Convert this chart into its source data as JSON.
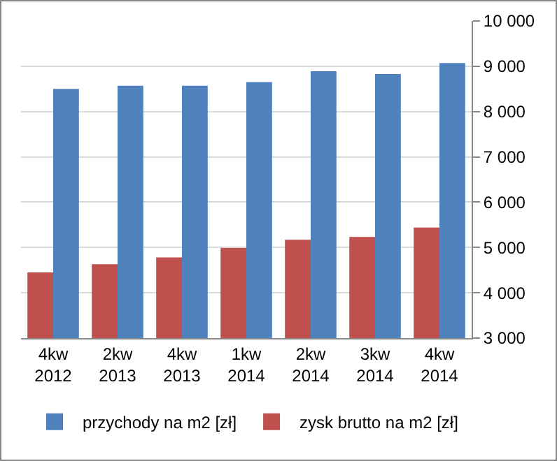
{
  "chart_data": {
    "type": "bar",
    "categories": [
      "4kw\n2012",
      "2kw\n2013",
      "4kw\n2013",
      "1kw\n2014",
      "2kw\n2014",
      "3kw\n2014",
      "4kw\n2014"
    ],
    "series": [
      {
        "name": "zysk brutto na m2 [zł]",
        "color": "#c0504d",
        "values": [
          4450,
          4630,
          4780,
          4990,
          5170,
          5230,
          5440
        ]
      },
      {
        "name": "przychody na m2 [zł]",
        "color": "#4f81bd",
        "values": [
          8500,
          8570,
          8570,
          8650,
          8890,
          8830,
          9070
        ]
      }
    ],
    "ylim": [
      3000,
      10000
    ],
    "yticks": [
      {
        "value": 3000,
        "label": "3 000"
      },
      {
        "value": 4000,
        "label": "4 000"
      },
      {
        "value": 5000,
        "label": "5 000"
      },
      {
        "value": 6000,
        "label": "6 000"
      },
      {
        "value": 7000,
        "label": "7 000"
      },
      {
        "value": 8000,
        "label": "8 000"
      },
      {
        "value": 9000,
        "label": "9 000"
      },
      {
        "value": 10000,
        "label": "10 000"
      }
    ],
    "grid": "y",
    "legend": "bottom"
  }
}
